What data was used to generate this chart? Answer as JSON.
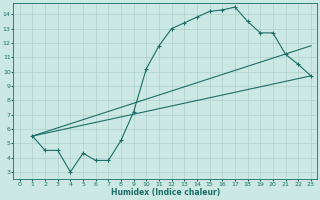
{
  "xlabel": "Humidex (Indice chaleur)",
  "bg_color": "#cce8e4",
  "grid_color": "#b0d0cc",
  "line_color": "#1a6e65",
  "xlim": [
    -0.5,
    23.5
  ],
  "ylim": [
    2.5,
    14.8
  ],
  "xticks": [
    0,
    1,
    2,
    3,
    4,
    5,
    6,
    7,
    8,
    9,
    10,
    11,
    12,
    13,
    14,
    15,
    16,
    17,
    18,
    19,
    20,
    21,
    22,
    23
  ],
  "yticks": [
    3,
    4,
    5,
    6,
    7,
    8,
    9,
    10,
    11,
    12,
    13,
    14
  ],
  "line1_x": [
    1,
    2,
    3,
    4,
    5,
    6,
    7,
    8,
    9,
    10,
    11,
    12,
    13,
    14,
    15,
    16,
    17,
    18,
    19,
    20,
    21,
    22,
    23
  ],
  "line1_y": [
    5.5,
    4.5,
    4.5,
    3.0,
    4.3,
    3.8,
    3.8,
    5.2,
    7.2,
    10.2,
    11.8,
    13.0,
    13.4,
    13.8,
    14.2,
    14.3,
    14.5,
    13.5,
    12.7,
    12.7,
    11.2,
    10.5,
    9.7
  ],
  "line2_x": [
    1,
    23
  ],
  "line2_y": [
    5.5,
    9.7
  ],
  "line3_x": [
    1,
    23
  ],
  "line3_y": [
    5.5,
    11.8
  ]
}
